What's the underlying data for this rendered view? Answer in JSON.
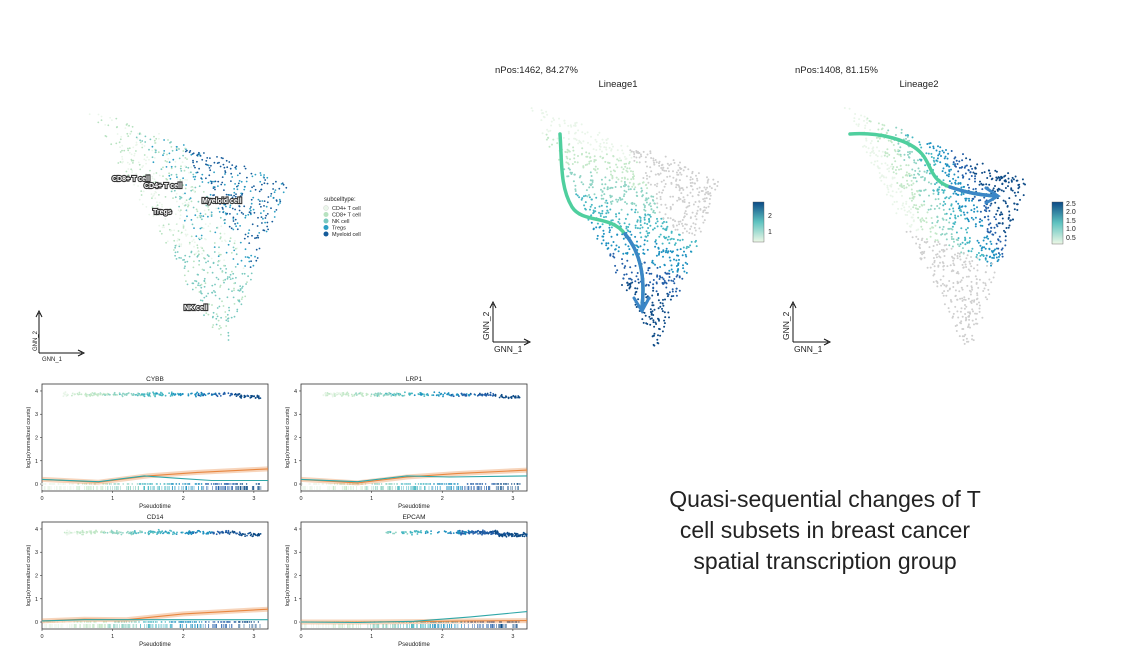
{
  "caption": "Quasi-sequential changes of T cell subsets in breast cancer spatial transcription group",
  "colors": {
    "palette": [
      "#e9f5e9",
      "#c4e8c9",
      "#8fd3c4",
      "#45b7c2",
      "#1d91c0",
      "#225ea8",
      "#0c4a86"
    ],
    "curve_green": "#4fcf9e",
    "curve_blue": "#3b86c6",
    "loess_orange": "#e88740",
    "loess_teal": "#2fa7a8",
    "grey_cells": "#cfcfcf"
  },
  "umap": {
    "xlabel": "GNN_1",
    "ylabel": "GNN_2",
    "legend_title": "subcelltype:",
    "legend": [
      "CD4+ T cell",
      "CD8+ T cell",
      "NK cell",
      "Tregs",
      "Myeloid cell"
    ],
    "legend_colors": [
      "#eaf6ea",
      "#b7e2c0",
      "#79c9bf",
      "#2c9fc4",
      "#155b9a"
    ],
    "cluster_labels": [
      "CD8+ T cell",
      "CD4+ T cell",
      "Tregs",
      "Myeloid cell",
      "NK cell"
    ]
  },
  "lineage1": {
    "npos": "nPos:1462, 84.27%",
    "title": "Lineage1",
    "xlabel": "GNN_1",
    "ylabel": "GNN_2",
    "colorbar_ticks": [
      "2",
      "1"
    ]
  },
  "lineage2": {
    "npos": "nPos:1408, 81.15%",
    "title": "Lineage2",
    "xlabel": "GNN_1",
    "ylabel": "GNN_2",
    "colorbar_ticks": [
      "2.5",
      "2.0",
      "1.5",
      "1.0",
      "0.5"
    ]
  },
  "chart_data": [
    {
      "type": "scatter",
      "title": "CYBB",
      "xlabel": "Pseudotime",
      "ylabel": "log1p(normalized counts)",
      "xlim": [
        0,
        3.2
      ],
      "ylim": [
        -0.3,
        4.3
      ],
      "x_ticks": [
        0,
        1,
        2,
        3
      ],
      "y_ticks": [
        0,
        1,
        2,
        3,
        4
      ],
      "series": [
        {
          "x": [
            0,
            0.8,
            1.5,
            2.2,
            3.2
          ],
          "y": [
            0.2,
            0.08,
            0.35,
            0.5,
            0.65
          ]
        },
        {
          "x": [
            0,
            0.8,
            1.45,
            1.9,
            2.4,
            3.2
          ],
          "y": [
            0.2,
            0.1,
            0.35,
            0.25,
            0.15,
            0.15
          ]
        }
      ]
    },
    {
      "type": "scatter",
      "title": "LRP1",
      "xlabel": "Pseudotime",
      "ylabel": "log1p(normalized counts)",
      "xlim": [
        0,
        3.2
      ],
      "ylim": [
        -0.3,
        4.3
      ],
      "x_ticks": [
        0,
        1,
        2,
        3
      ],
      "y_ticks": [
        0,
        1,
        2,
        3,
        4
      ],
      "series": [
        {
          "x": [
            0,
            0.8,
            1.5,
            2.2,
            3.2
          ],
          "y": [
            0.2,
            0.05,
            0.3,
            0.45,
            0.6
          ]
        },
        {
          "x": [
            0,
            0.8,
            1.5,
            2.1,
            3.2
          ],
          "y": [
            0.2,
            0.1,
            0.35,
            0.3,
            0.35
          ]
        }
      ]
    },
    {
      "type": "scatter",
      "title": "CD14",
      "xlabel": "Pseudotime",
      "ylabel": "log1p(normalized counts)",
      "xlim": [
        0,
        3.2
      ],
      "ylim": [
        -0.3,
        4.3
      ],
      "x_ticks": [
        0,
        1,
        2,
        3
      ],
      "y_ticks": [
        0,
        1,
        2,
        3,
        4
      ],
      "series": [
        {
          "x": [
            0,
            0.6,
            1.2,
            2.0,
            3.2
          ],
          "y": [
            0.05,
            0.12,
            0.1,
            0.35,
            0.55
          ]
        },
        {
          "x": [
            0,
            0.6,
            1.3,
            2.2,
            3.2
          ],
          "y": [
            0.05,
            0.1,
            0.1,
            0.1,
            0.1
          ]
        }
      ]
    },
    {
      "type": "scatter",
      "title": "EPCAM",
      "xlabel": "Pseudotime",
      "ylabel": "log1p(normalized counts)",
      "xlim": [
        0,
        3.2
      ],
      "ylim": [
        -0.3,
        4.3
      ],
      "x_ticks": [
        0,
        1,
        2,
        3
      ],
      "y_ticks": [
        0,
        1,
        2,
        3,
        4
      ],
      "series": [
        {
          "x": [
            0,
            0.8,
            1.6,
            2.4,
            3.2
          ],
          "y": [
            0.0,
            0.0,
            0.02,
            0.05,
            0.06
          ]
        },
        {
          "x": [
            0,
            0.8,
            1.6,
            2.4,
            3.2
          ],
          "y": [
            0.0,
            -0.02,
            0.03,
            0.22,
            0.45
          ]
        }
      ]
    }
  ]
}
